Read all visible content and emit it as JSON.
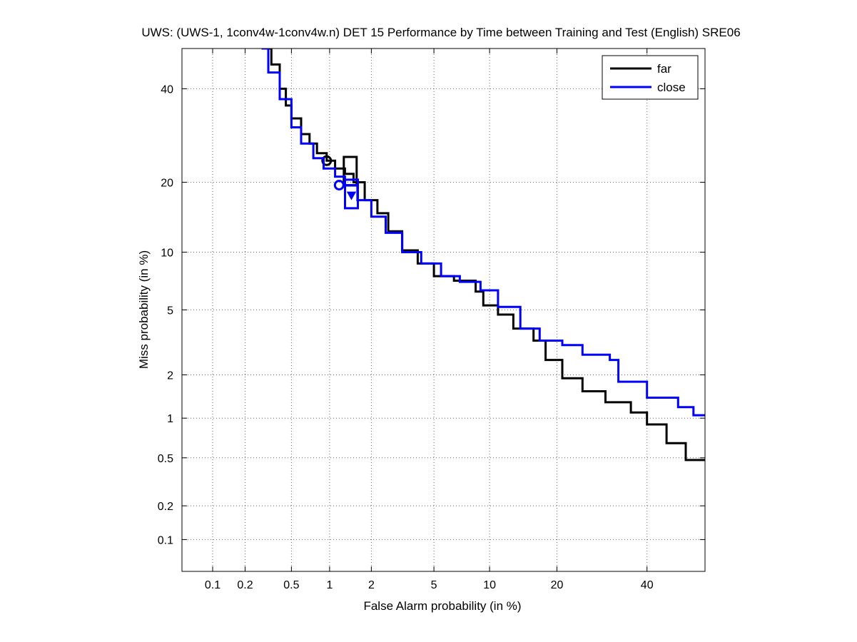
{
  "chart_data": {
    "type": "line",
    "title": "UWS: (UWS-1, 1conv4w-1conv4w.n) DET 15 Performance by Time between Training and Test (English) SRE06",
    "xlabel": "False Alarm probability (in %)",
    "ylabel": "Miss probability (in %)",
    "xscale": "normal-deviate",
    "yscale": "normal-deviate",
    "xlim": [
      0.05,
      55
    ],
    "ylim": [
      0.05,
      50
    ],
    "grid": true,
    "legend_position": "top-right",
    "x_ticks": [
      0.1,
      0.2,
      0.5,
      1,
      2,
      5,
      10,
      20,
      40
    ],
    "x_tick_labels": [
      "0.1",
      "0.2",
      "0.5",
      "1",
      "2",
      "5",
      "10",
      "20",
      "40"
    ],
    "y_ticks": [
      0.1,
      0.2,
      0.5,
      1,
      2,
      5,
      10,
      20,
      40
    ],
    "y_tick_labels": [
      "0.1",
      "0.2",
      "0.5",
      "1",
      "2",
      "5",
      "10",
      "20",
      "40"
    ],
    "series": [
      {
        "name": "far",
        "color": "#000000",
        "points": [
          [
            0.31,
            50
          ],
          [
            0.34,
            46
          ],
          [
            0.4,
            40
          ],
          [
            0.45,
            36
          ],
          [
            0.5,
            33
          ],
          [
            0.6,
            29.5
          ],
          [
            0.7,
            27.5
          ],
          [
            0.8,
            25.5
          ],
          [
            0.95,
            24
          ],
          [
            1.1,
            22.5
          ],
          [
            1.3,
            21.5
          ],
          [
            1.5,
            20
          ],
          [
            1.8,
            17
          ],
          [
            2.2,
            15
          ],
          [
            2.6,
            12.5
          ],
          [
            3.2,
            10.2
          ],
          [
            4,
            8.8
          ],
          [
            5,
            7.6
          ],
          [
            6.5,
            7.2
          ],
          [
            8.5,
            6.3
          ],
          [
            9.3,
            5.3
          ],
          [
            11,
            4.7
          ],
          [
            13,
            3.9
          ],
          [
            16,
            3.3
          ],
          [
            18,
            2.5
          ],
          [
            21,
            1.9
          ],
          [
            25,
            1.55
          ],
          [
            30,
            1.3
          ],
          [
            36,
            1.1
          ],
          [
            40,
            0.9
          ],
          [
            45,
            0.65
          ],
          [
            50,
            0.48
          ],
          [
            55,
            0.48
          ]
        ],
        "marker_circle": [
          0.95,
          24
        ],
        "marker_square": [
          1.42,
          22
        ]
      },
      {
        "name": "close",
        "color": "#0000ff",
        "points": [
          [
            0.28,
            50
          ],
          [
            0.32,
            44
          ],
          [
            0.4,
            37.5
          ],
          [
            0.5,
            31
          ],
          [
            0.6,
            27.5
          ],
          [
            0.75,
            24.5
          ],
          [
            0.9,
            22.5
          ],
          [
            1.1,
            21
          ],
          [
            1.3,
            19.5
          ],
          [
            1.6,
            17
          ],
          [
            2,
            14.5
          ],
          [
            2.5,
            12.3
          ],
          [
            3.2,
            10
          ],
          [
            4.2,
            8.8
          ],
          [
            5.5,
            7.6
          ],
          [
            7,
            7.1
          ],
          [
            9,
            6.4
          ],
          [
            11,
            5.2
          ],
          [
            14,
            3.9
          ],
          [
            17,
            3.3
          ],
          [
            21,
            3.1
          ],
          [
            25,
            2.7
          ],
          [
            31,
            2.5
          ],
          [
            33,
            1.8
          ],
          [
            40,
            1.4
          ],
          [
            48,
            1.2
          ],
          [
            52,
            1.05
          ],
          [
            55,
            1.05
          ]
        ],
        "marker_circle": [
          1.18,
          19.5
        ],
        "marker_square": [
          1.45,
          18
        ],
        "marker_triangle": [
          1.45,
          17.8
        ]
      }
    ]
  }
}
